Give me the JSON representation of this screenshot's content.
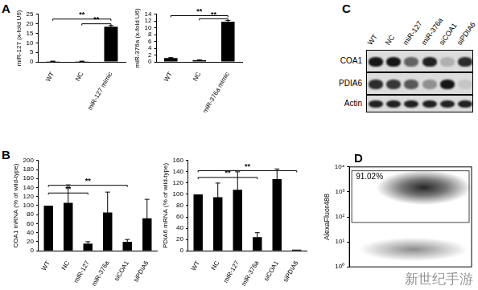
{
  "chart_data": [
    {
      "panel": "A",
      "type": "bar",
      "y_label": "miR-127 (x-fold U6)",
      "categories": [
        "WT",
        "NC",
        "miR-127 mimic"
      ],
      "values": [
        0.3,
        0.3,
        18.5
      ],
      "errors": [
        0.1,
        0.1,
        0.6
      ],
      "color": "#000000",
      "ylim": [
        0,
        25
      ],
      "yticks": [
        0,
        5,
        10,
        15,
        20,
        25
      ],
      "grid": false,
      "significance": [
        {
          "from": "WT",
          "to": "miR-127 mimic",
          "y": 22.5,
          "label": "**"
        },
        {
          "from": "NC",
          "to": "miR-127 mimic",
          "y": 20,
          "label": "**"
        }
      ]
    },
    {
      "type": "bar",
      "y_label": "miR-376a (x-fold U6)",
      "categories": [
        "WT",
        "NC",
        "miR-376a mimic"
      ],
      "values": [
        1.1,
        0.5,
        11.8
      ],
      "errors": [
        0.15,
        0.1,
        0.4
      ],
      "color": "#000000",
      "ylim": [
        0,
        14
      ],
      "yticks": [
        0,
        2,
        4,
        6,
        8,
        10,
        12,
        14
      ],
      "grid": false,
      "significance": [
        {
          "from": "WT",
          "to": "miR-376a mimic",
          "y": 13.6,
          "label": "**"
        },
        {
          "from": "NC",
          "to": "miR-376a mimic",
          "y": 12.7,
          "label": "**"
        }
      ]
    },
    {
      "panel": "C",
      "type": "western_blot",
      "lanes": [
        "WT",
        "NC",
        "miR-127",
        "miR-376a",
        "siCOA1",
        "siPDIA6"
      ],
      "rows": [
        {
          "name": "COA1",
          "intensity": [
            0.9,
            0.9,
            0.55,
            0.85,
            0.2,
            0.8
          ]
        },
        {
          "name": "PDIA6",
          "intensity": [
            0.8,
            0.75,
            0.6,
            0.35,
            0.9,
            0.1
          ]
        },
        {
          "name": "Actin",
          "intensity": [
            0.85,
            0.85,
            0.85,
            0.85,
            0.85,
            0.85
          ]
        }
      ]
    },
    {
      "panel": "B",
      "type": "bar",
      "y_label": "COA1 mRNA (% of wild-type)",
      "categories": [
        "WT",
        "NC",
        "miR-127",
        "miR-376a",
        "siCOA1",
        "siPDIA6"
      ],
      "values": [
        100,
        106,
        16,
        85,
        20,
        72
      ],
      "errors": [
        0,
        40,
        4,
        45,
        5,
        42
      ],
      "color": "#000000",
      "ylim": [
        0,
        200
      ],
      "yticks": [
        0,
        20,
        40,
        60,
        80,
        100,
        120,
        140,
        160,
        180,
        200
      ],
      "grid": false,
      "significance": [
        {
          "from": "WT",
          "to": "siCOA1",
          "y": 145,
          "label": "**"
        },
        {
          "from": "WT",
          "to": "miR-127",
          "y": 128,
          "label": "**"
        }
      ]
    },
    {
      "type": "bar",
      "y_label": "PDIA6 mRNA (% of wild-type)",
      "categories": [
        "WT",
        "NC",
        "miR-127",
        "miR-376a",
        "siCOA1",
        "siPDIA6"
      ],
      "values": [
        100,
        95,
        108,
        24,
        127,
        2
      ],
      "errors": [
        0,
        25,
        32,
        8,
        18,
        0
      ],
      "color": "#000000",
      "ylim": [
        0,
        160
      ],
      "yticks": [
        0,
        20,
        40,
        60,
        80,
        100,
        120,
        140,
        160
      ],
      "grid": false,
      "significance": [
        {
          "from": "WT",
          "to": "siPDIA6",
          "y": 142,
          "label": "**"
        },
        {
          "from": "WT",
          "to": "miR-376a",
          "y": 130,
          "label": "**"
        }
      ]
    },
    {
      "panel": "D",
      "type": "scatter",
      "y_label": "AlexaFluor488",
      "log": "y",
      "tick_labels": "y",
      "ylim": [
        1,
        10000
      ],
      "yticks": [
        {
          "value": 1,
          "label": "10⁰"
        },
        {
          "value": 10,
          "label": "10¹"
        },
        {
          "value": 100,
          "label": "10²"
        },
        {
          "value": 1000,
          "label": "10³"
        },
        {
          "value": 10000,
          "label": "10⁴"
        }
      ],
      "gate": {
        "ylim": [
          60,
          7000
        ],
        "label": "91.02%"
      },
      "populations": [
        {
          "y_center": 1500,
          "y_spread": [
            300,
            5000
          ]
        },
        {
          "y_center": 5,
          "y_spread": [
            2,
            15
          ]
        }
      ],
      "watermark": "新世纪手游"
    }
  ]
}
